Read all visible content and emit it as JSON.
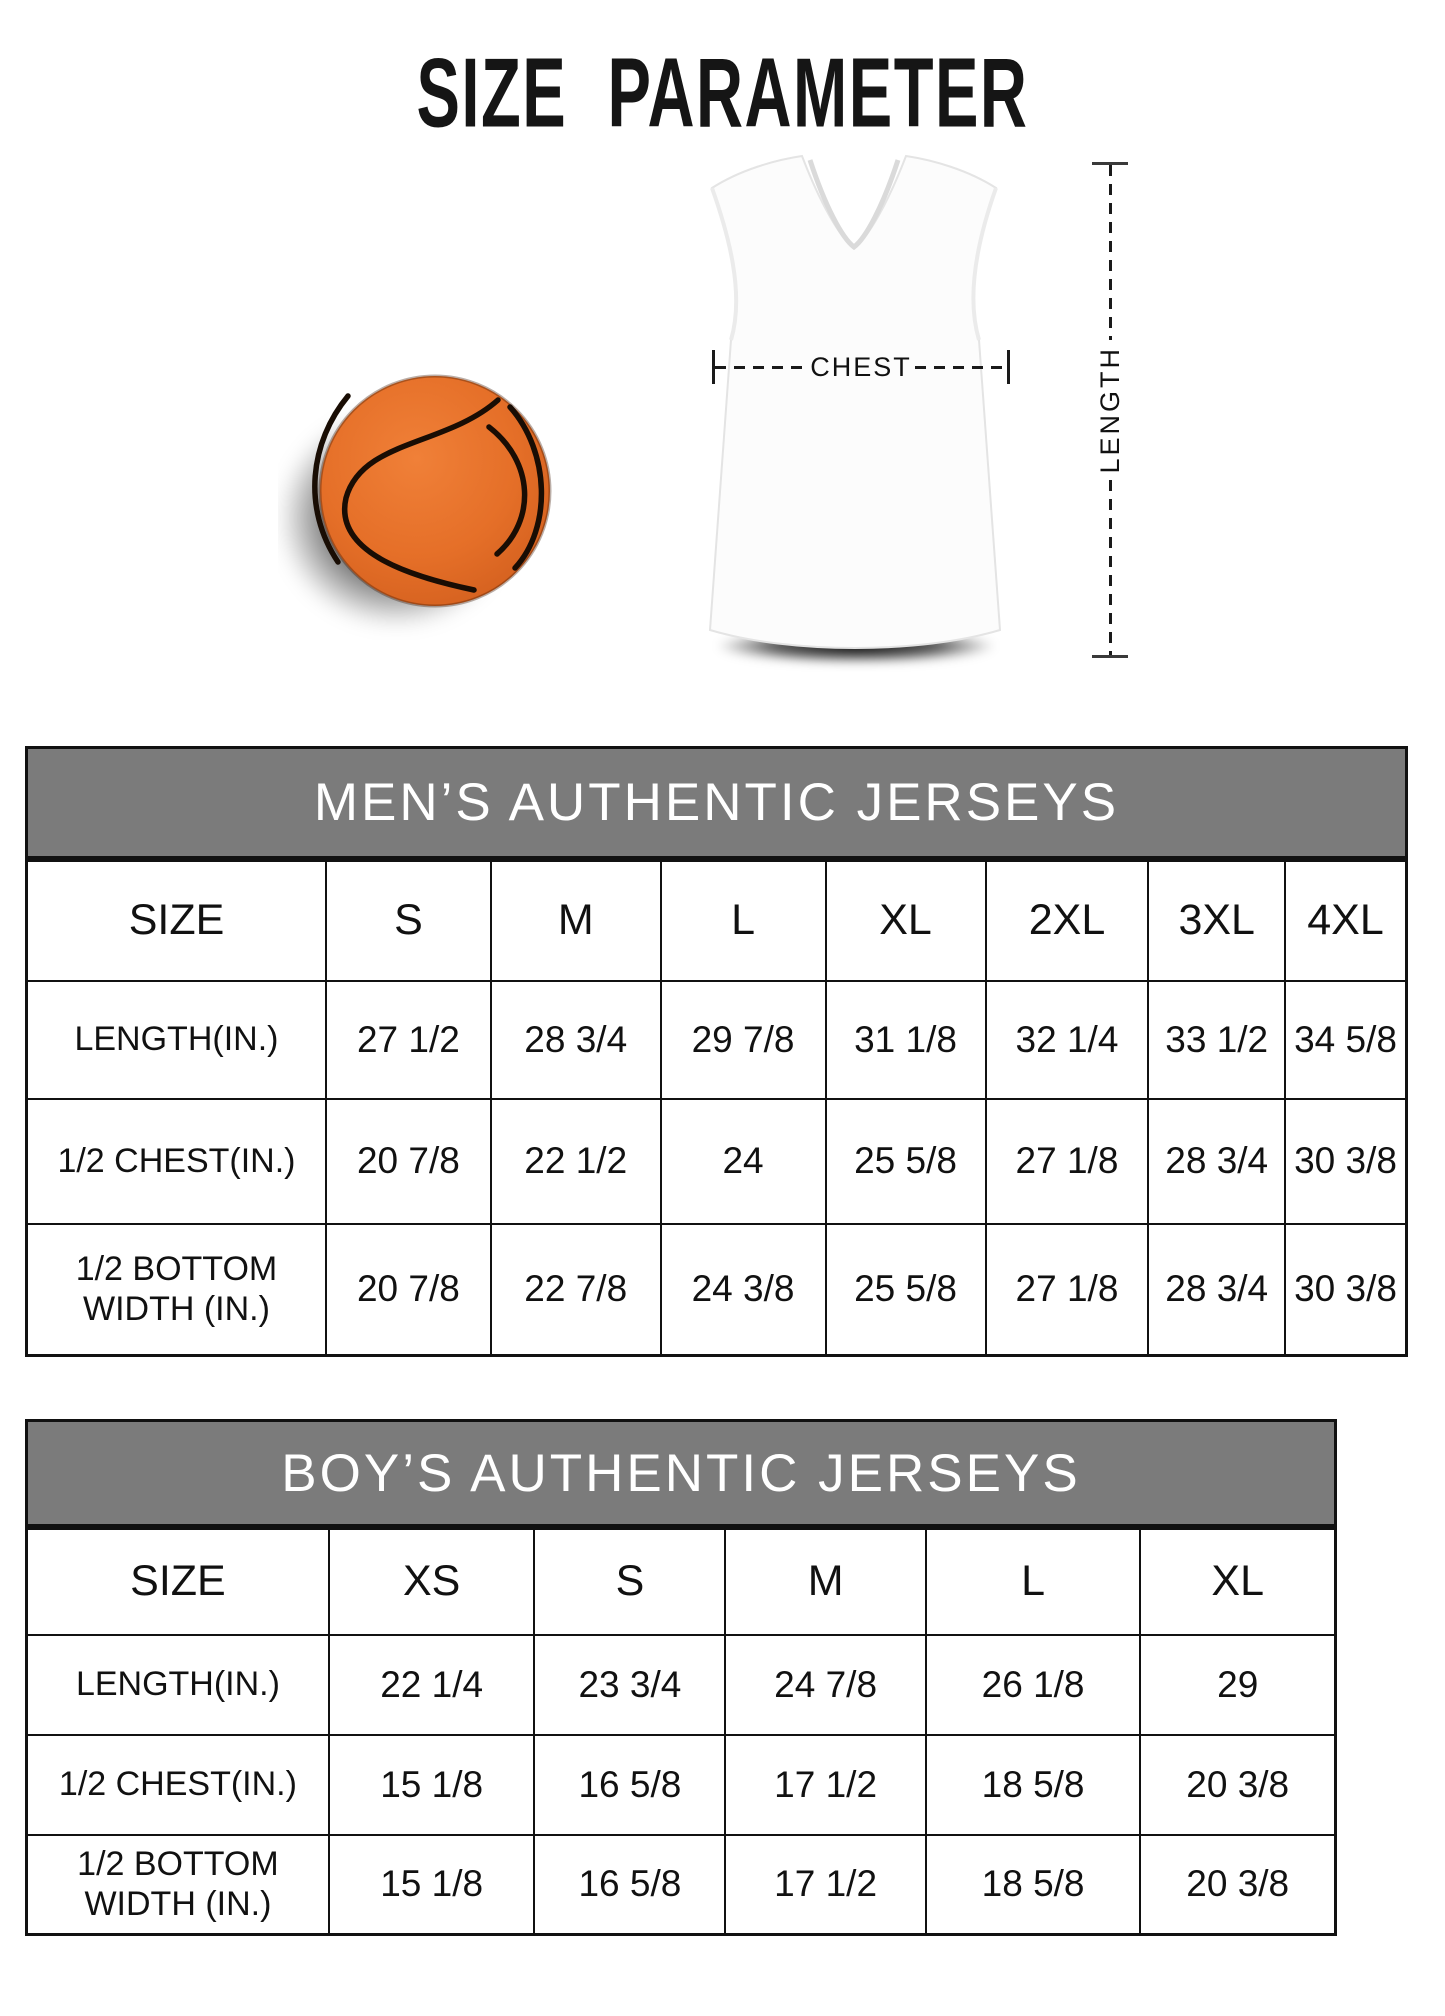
{
  "title": "SIZE  PARAMETER",
  "figure": {
    "chest_label": "CHEST",
    "length_label": "LENGTH",
    "basketball_color": "#e56f28",
    "banner_color": "#7b7b7b"
  },
  "tables": [
    {
      "banner": "MEN’S AUTHENTIC JERSEYS",
      "header": [
        "SIZE",
        "S",
        "M",
        "L",
        "XL",
        "2XL",
        "3XL",
        "4XL"
      ],
      "rows": [
        {
          "label": "LENGTH(IN.)",
          "values": [
            "27 1/2",
            "28 3/4",
            "29 7/8",
            "31 1/8",
            "32 1/4",
            "33 1/2",
            "34 5/8"
          ]
        },
        {
          "label": "1/2 CHEST(IN.)",
          "values": [
            "20 7/8",
            "22 1/2",
            "24",
            "25 5/8",
            "27 1/8",
            "28 3/4",
            "30 3/8"
          ]
        },
        {
          "label": "1/2 BOTTOM WIDTH (IN.)",
          "values": [
            "20 7/8",
            "22 7/8",
            "24 3/8",
            "25 5/8",
            "27 1/8",
            "28 3/4",
            "30 3/8"
          ]
        }
      ]
    },
    {
      "banner": "BOY’S AUTHENTIC JERSEYS",
      "header": [
        "SIZE",
        "XS",
        "S",
        "M",
        "L",
        "XL"
      ],
      "rows": [
        {
          "label": "LENGTH(IN.)",
          "values": [
            "22 1/4",
            "23 3/4",
            "24 7/8",
            "26 1/8",
            "29"
          ]
        },
        {
          "label": "1/2 CHEST(IN.)",
          "values": [
            "15 1/8",
            "16 5/8",
            "17 1/2",
            "18 5/8",
            "20 3/8"
          ]
        },
        {
          "label": "1/2 BOTTOM WIDTH (IN.)",
          "values": [
            "15 1/8",
            "16 5/8",
            "17 1/2",
            "18 5/8",
            "20 3/8"
          ]
        }
      ]
    }
  ]
}
